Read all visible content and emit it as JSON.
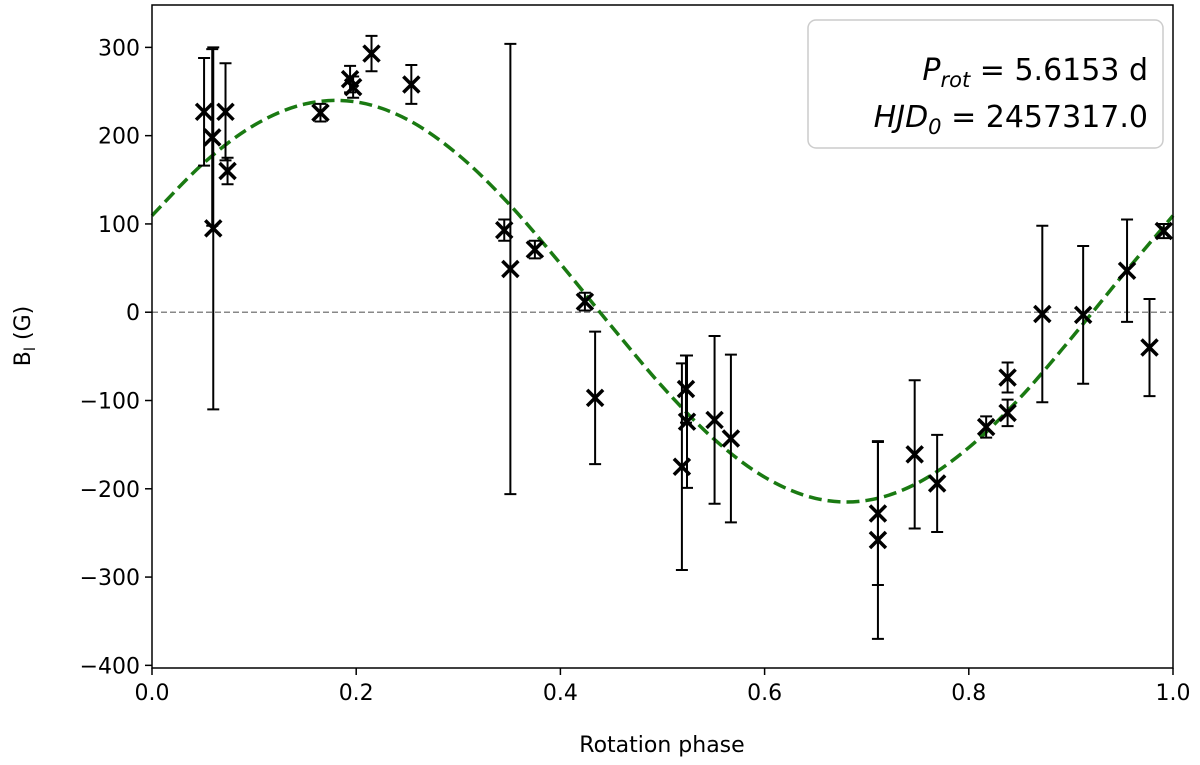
{
  "chart_data": {
    "type": "scatter",
    "xlabel": "Rotation phase",
    "ylabel": {
      "main": "B",
      "sub": "l",
      "rest": " (G)"
    },
    "annotations": [
      {
        "main": "P",
        "sub": "rot",
        "rest": " = 5.6153 d"
      },
      {
        "main": "HJD",
        "sub": "0",
        "rest": " = 2457317.0"
      }
    ],
    "xlim": [
      0,
      1
    ],
    "ylim": [
      -403,
      348
    ],
    "xticks": [
      {
        "value": 0,
        "label": "0.0"
      },
      {
        "value": 0.2,
        "label": "0.2"
      },
      {
        "value": 0.4,
        "label": "0.4"
      },
      {
        "value": 0.6,
        "label": "0.6"
      },
      {
        "value": 0.8,
        "label": "0.8"
      },
      {
        "value": 1,
        "label": "1.0"
      }
    ],
    "yticks": [
      {
        "value": -400,
        "label": "−400"
      },
      {
        "value": -300,
        "label": "−300"
      },
      {
        "value": -200,
        "label": "−200"
      },
      {
        "value": -100,
        "label": "−100"
      },
      0,
      100,
      200,
      300
    ],
    "hline": 0,
    "series": [
      {
        "color": "#000000",
        "x": [
          0.051,
          0.059,
          0.06,
          0.072,
          0.074,
          0.165,
          0.194,
          0.197,
          0.215,
          0.254,
          0.345,
          0.351,
          0.375,
          0.424,
          0.434,
          0.519,
          0.523,
          0.524,
          0.551,
          0.567,
          0.711,
          0.711,
          0.747,
          0.769,
          0.817,
          0.838,
          0.838,
          0.872,
          0.912,
          0.955,
          0.977,
          0.991
        ],
        "values": [
          227,
          198,
          95,
          227,
          160,
          226,
          264,
          255,
          293,
          258,
          93,
          49,
          71,
          12,
          -97,
          -175,
          -87,
          -124,
          -122,
          -143,
          -228,
          -258,
          -161,
          -194,
          -130,
          -74,
          -114,
          -2,
          -3,
          47,
          -40,
          92
        ],
        "errors": [
          61,
          100,
          205,
          55,
          15,
          10,
          15,
          12,
          20,
          22,
          12,
          255,
          10,
          10,
          75,
          117,
          38,
          75,
          95,
          95,
          81,
          112,
          84,
          55,
          12,
          17,
          15,
          100,
          78,
          58,
          55,
          8
        ]
      },
      {
        "color": "#1a7a12",
        "style": "dashed",
        "x": [
          0,
          0.05,
          0.1,
          0.15,
          0.2,
          0.25,
          0.3,
          0.35,
          0.4,
          0.45,
          0.5,
          0.55,
          0.6,
          0.65,
          0.7,
          0.75,
          0.8,
          0.85,
          0.9,
          0.95,
          1
        ],
        "values": [
          109.4,
          168.3,
          211.8,
          235.9,
          238.2,
          218.4,
          178.3,
          122.2,
          55.0,
          -15.9,
          -84.4,
          -143.3,
          -186.8,
          -210.9,
          -213.2,
          -193.4,
          -153.3,
          -97.2,
          -30.0,
          40.9,
          109.4
        ]
      }
    ]
  }
}
